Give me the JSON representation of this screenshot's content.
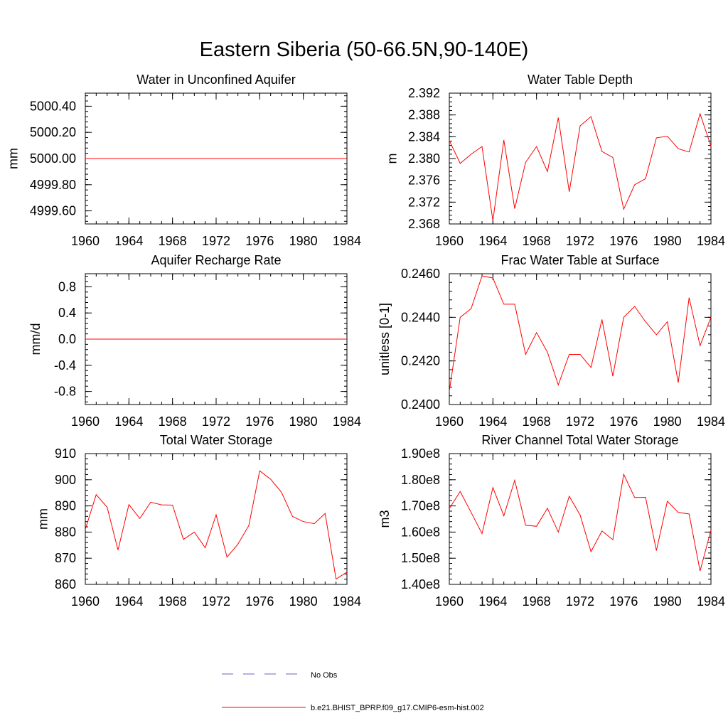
{
  "figure": {
    "title": "Eastern Siberia (50-66.5N,90-140E)"
  },
  "legend": {
    "items": [
      {
        "label": "No Obs",
        "color": "#6666cc",
        "style": "dashed"
      },
      {
        "label": "b.e21.BHIST_BPRP.f09_g17.CMIP6-esm-hist.002",
        "color": "#ff0000",
        "style": "solid"
      }
    ]
  },
  "chart_data": [
    {
      "type": "line",
      "title": "Water in Unconfined Aquifer",
      "ylabel": "mm",
      "xlim": [
        1960,
        1984
      ],
      "ylim": [
        4999.5,
        5000.5
      ],
      "xticks": [
        1960,
        1964,
        1968,
        1972,
        1976,
        1980,
        1984
      ],
      "yticks": [
        4999.6,
        4999.8,
        5000.0,
        5000.2,
        5000.4
      ],
      "ytick_labels": [
        "4999.60",
        "4999.80",
        "5000.00",
        "5000.20",
        "5000.40"
      ],
      "series": [
        {
          "color": "#ff0000",
          "x": [
            1960,
            1961,
            1962,
            1963,
            1964,
            1965,
            1966,
            1967,
            1968,
            1969,
            1970,
            1971,
            1972,
            1973,
            1974,
            1975,
            1976,
            1977,
            1978,
            1979,
            1980,
            1981,
            1982,
            1983,
            1984
          ],
          "values": [
            5000,
            5000,
            5000,
            5000,
            5000,
            5000,
            5000,
            5000,
            5000,
            5000,
            5000,
            5000,
            5000,
            5000,
            5000,
            5000,
            5000,
            5000,
            5000,
            5000,
            5000,
            5000,
            5000,
            5000,
            5000
          ]
        }
      ]
    },
    {
      "type": "line",
      "title": "Water Table Depth",
      "ylabel": "m",
      "xlim": [
        1960,
        1984
      ],
      "ylim": [
        2.368,
        2.392
      ],
      "xticks": [
        1960,
        1964,
        1968,
        1972,
        1976,
        1980,
        1984
      ],
      "yticks": [
        2.368,
        2.372,
        2.376,
        2.38,
        2.384,
        2.388,
        2.392
      ],
      "ytick_labels": [
        "2.368",
        "2.372",
        "2.376",
        "2.380",
        "2.384",
        "2.388",
        "2.392"
      ],
      "series": [
        {
          "color": "#ff0000",
          "x": [
            1960,
            1961,
            1962,
            1963,
            1964,
            1965,
            1966,
            1967,
            1968,
            1969,
            1970,
            1971,
            1972,
            1973,
            1974,
            1975,
            1976,
            1977,
            1978,
            1979,
            1980,
            1981,
            1982,
            1983,
            1984
          ],
          "values": [
            2.3833,
            2.3791,
            2.3808,
            2.3822,
            2.3686,
            2.3834,
            2.3708,
            2.3793,
            2.3822,
            2.3776,
            2.3875,
            2.3739,
            2.386,
            2.3877,
            2.3813,
            2.3802,
            2.3707,
            2.3752,
            2.3763,
            2.3838,
            2.3841,
            2.3818,
            2.3812,
            2.3882,
            2.3823
          ]
        }
      ]
    },
    {
      "type": "line",
      "title": "Aquifer Recharge Rate",
      "ylabel": "mm/d",
      "xlim": [
        1960,
        1984
      ],
      "ylim": [
        -1.0,
        1.0
      ],
      "xticks": [
        1960,
        1964,
        1968,
        1972,
        1976,
        1980,
        1984
      ],
      "yticks": [
        -0.8,
        -0.4,
        0.0,
        0.4,
        0.8
      ],
      "ytick_labels": [
        "-0.8",
        "-0.4",
        "0.0",
        "0.4",
        "0.8"
      ],
      "series": [
        {
          "color": "#ff0000",
          "x": [
            1960,
            1961,
            1962,
            1963,
            1964,
            1965,
            1966,
            1967,
            1968,
            1969,
            1970,
            1971,
            1972,
            1973,
            1974,
            1975,
            1976,
            1977,
            1978,
            1979,
            1980,
            1981,
            1982,
            1983,
            1984
          ],
          "values": [
            0,
            0,
            0,
            0,
            0,
            0,
            0,
            0,
            0,
            0,
            0,
            0,
            0,
            0,
            0,
            0,
            0,
            0,
            0,
            0,
            0,
            0,
            0,
            0,
            0
          ]
        }
      ]
    },
    {
      "type": "line",
      "title": "Frac Water Table at Surface",
      "ylabel": "unitless [0-1]",
      "xlim": [
        1960,
        1984
      ],
      "ylim": [
        0.24,
        0.246
      ],
      "xticks": [
        1960,
        1964,
        1968,
        1972,
        1976,
        1980,
        1984
      ],
      "yticks": [
        0.24,
        0.242,
        0.244,
        0.246
      ],
      "ytick_labels": [
        "0.2400",
        "0.2420",
        "0.2440",
        "0.2460"
      ],
      "series": [
        {
          "color": "#ff0000",
          "x": [
            1960,
            1961,
            1962,
            1963,
            1964,
            1965,
            1966,
            1967,
            1968,
            1969,
            1970,
            1971,
            1972,
            1973,
            1974,
            1975,
            1976,
            1977,
            1978,
            1979,
            1980,
            1981,
            1982,
            1983,
            1984
          ],
          "values": [
            0.2406,
            0.244,
            0.2444,
            0.2459,
            0.2458,
            0.2446,
            0.2446,
            0.2423,
            0.2433,
            0.2424,
            0.2409,
            0.2423,
            0.2423,
            0.2417,
            0.2439,
            0.2413,
            0.244,
            0.2445,
            0.2438,
            0.2432,
            0.2438,
            0.241,
            0.2449,
            0.2427,
            0.244
          ]
        }
      ]
    },
    {
      "type": "line",
      "title": "Total Water Storage",
      "ylabel": "mm",
      "xlim": [
        1960,
        1984
      ],
      "ylim": [
        860,
        910
      ],
      "xticks": [
        1960,
        1964,
        1968,
        1972,
        1976,
        1980,
        1984
      ],
      "yticks": [
        860,
        870,
        880,
        890,
        900,
        910
      ],
      "ytick_labels": [
        "860",
        "870",
        "880",
        "890",
        "900",
        "910"
      ],
      "series": [
        {
          "color": "#ff0000",
          "x": [
            1960,
            1961,
            1962,
            1963,
            1964,
            1965,
            1966,
            1967,
            1968,
            1969,
            1970,
            1971,
            1972,
            1973,
            1974,
            1975,
            1976,
            1977,
            1978,
            1979,
            1980,
            1981,
            1982,
            1983,
            1984
          ],
          "values": [
            881.0,
            894.3,
            889.5,
            873.1,
            890.5,
            885.2,
            891.4,
            890.4,
            890.3,
            877.2,
            880.0,
            874.0,
            886.6,
            870.4,
            875.4,
            882.5,
            903.4,
            900.2,
            895.2,
            886.0,
            884.0,
            883.2,
            887.1,
            862.0,
            864.7
          ]
        }
      ]
    },
    {
      "type": "line",
      "title": "River Channel Total Water Storage",
      "ylabel": "m3",
      "xlim": [
        1960,
        1984
      ],
      "ylim": [
        140000000,
        190000000
      ],
      "xticks": [
        1960,
        1964,
        1968,
        1972,
        1976,
        1980,
        1984
      ],
      "yticks": [
        140000000,
        150000000,
        160000000,
        170000000,
        180000000,
        190000000
      ],
      "ytick_labels": [
        "1.40e8",
        "1.50e8",
        "1.60e8",
        "1.70e8",
        "1.80e8",
        "1.90e8"
      ],
      "series": [
        {
          "color": "#ff0000",
          "x": [
            1960,
            1961,
            1962,
            1963,
            1964,
            1965,
            1966,
            1967,
            1968,
            1969,
            1970,
            1971,
            1972,
            1973,
            1974,
            1975,
            1976,
            1977,
            1978,
            1979,
            1980,
            1981,
            1982,
            1983,
            1984
          ],
          "values": [
            169000000,
            175500000,
            167500000,
            159400000,
            177000000,
            166200000,
            179800000,
            162600000,
            162200000,
            169100000,
            160000000,
            173700000,
            166500000,
            152500000,
            160400000,
            157100000,
            182100000,
            173200000,
            173300000,
            152900000,
            171800000,
            167500000,
            166900000,
            145100000,
            160700000
          ]
        }
      ]
    }
  ]
}
